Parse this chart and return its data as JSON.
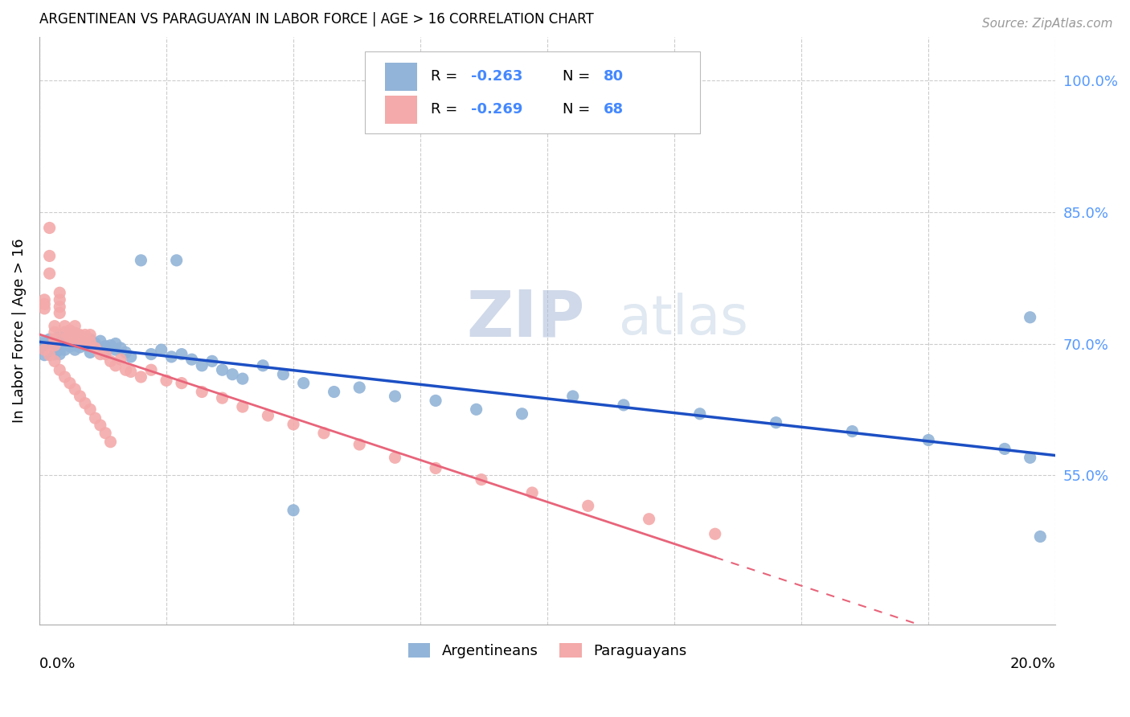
{
  "title": "ARGENTINEAN VS PARAGUAYAN IN LABOR FORCE | AGE > 16 CORRELATION CHART",
  "source": "Source: ZipAtlas.com",
  "ylabel": "In Labor Force | Age > 16",
  "right_ytick_labels": [
    "100.0%",
    "85.0%",
    "70.0%",
    "55.0%"
  ],
  "right_ytick_vals": [
    1.0,
    0.85,
    0.7,
    0.55
  ],
  "legend_blue_r": "R = -0.263",
  "legend_blue_n": "N = 80",
  "legend_pink_r": "R = -0.269",
  "legend_pink_n": "N = 68",
  "blue_color": "#92B4D8",
  "pink_color": "#F4AAAA",
  "blue_line_color": "#1C4FC4",
  "pink_line_color": "#E8647A",
  "watermark_zip": "ZIP",
  "watermark_atlas": "atlas",
  "xlim": [
    0.0,
    0.2
  ],
  "ylim": [
    0.38,
    1.05
  ],
  "grid_yticks": [
    0.55,
    0.7,
    0.85,
    1.0
  ],
  "blue_x": [
    0.001,
    0.001,
    0.001,
    0.001,
    0.001,
    0.002,
    0.002,
    0.002,
    0.002,
    0.002,
    0.003,
    0.003,
    0.003,
    0.003,
    0.004,
    0.004,
    0.004,
    0.004,
    0.004,
    0.005,
    0.005,
    0.005,
    0.005,
    0.006,
    0.006,
    0.006,
    0.007,
    0.007,
    0.007,
    0.007,
    0.008,
    0.008,
    0.008,
    0.009,
    0.009,
    0.01,
    0.01,
    0.01,
    0.011,
    0.012,
    0.013,
    0.013,
    0.014,
    0.015,
    0.015,
    0.016,
    0.017,
    0.018,
    0.02,
    0.022,
    0.024,
    0.026,
    0.027,
    0.028,
    0.03,
    0.032,
    0.034,
    0.036,
    0.038,
    0.04,
    0.044,
    0.048,
    0.052,
    0.058,
    0.063,
    0.07,
    0.078,
    0.086,
    0.095,
    0.105,
    0.115,
    0.13,
    0.145,
    0.16,
    0.175,
    0.19,
    0.195,
    0.197,
    0.05,
    0.195
  ],
  "blue_y": [
    0.695,
    0.7,
    0.693,
    0.687,
    0.703,
    0.698,
    0.705,
    0.693,
    0.688,
    0.698,
    0.703,
    0.697,
    0.692,
    0.688,
    0.71,
    0.703,
    0.697,
    0.693,
    0.688,
    0.712,
    0.705,
    0.698,
    0.693,
    0.71,
    0.703,
    0.697,
    0.712,
    0.705,
    0.698,
    0.693,
    0.708,
    0.702,
    0.696,
    0.705,
    0.698,
    0.705,
    0.698,
    0.69,
    0.7,
    0.703,
    0.697,
    0.69,
    0.698,
    0.7,
    0.693,
    0.695,
    0.69,
    0.685,
    0.795,
    0.688,
    0.693,
    0.685,
    0.795,
    0.688,
    0.682,
    0.675,
    0.68,
    0.67,
    0.665,
    0.66,
    0.675,
    0.665,
    0.655,
    0.645,
    0.65,
    0.64,
    0.635,
    0.625,
    0.62,
    0.64,
    0.63,
    0.62,
    0.61,
    0.6,
    0.59,
    0.58,
    0.57,
    0.48,
    0.51,
    0.73
  ],
  "pink_x": [
    0.001,
    0.001,
    0.001,
    0.002,
    0.002,
    0.002,
    0.003,
    0.003,
    0.003,
    0.003,
    0.004,
    0.004,
    0.004,
    0.004,
    0.005,
    0.005,
    0.005,
    0.006,
    0.006,
    0.007,
    0.007,
    0.007,
    0.008,
    0.008,
    0.009,
    0.009,
    0.01,
    0.01,
    0.011,
    0.012,
    0.013,
    0.014,
    0.015,
    0.016,
    0.017,
    0.018,
    0.02,
    0.022,
    0.025,
    0.028,
    0.032,
    0.036,
    0.04,
    0.045,
    0.05,
    0.056,
    0.063,
    0.07,
    0.078,
    0.087,
    0.097,
    0.108,
    0.12,
    0.133,
    0.001,
    0.002,
    0.003,
    0.004,
    0.005,
    0.006,
    0.007,
    0.008,
    0.009,
    0.01,
    0.011,
    0.012,
    0.013,
    0.014
  ],
  "pink_y": [
    0.75,
    0.745,
    0.74,
    0.832,
    0.8,
    0.78,
    0.72,
    0.713,
    0.705,
    0.698,
    0.758,
    0.75,
    0.742,
    0.735,
    0.72,
    0.713,
    0.705,
    0.715,
    0.707,
    0.72,
    0.712,
    0.705,
    0.71,
    0.702,
    0.71,
    0.702,
    0.71,
    0.702,
    0.695,
    0.688,
    0.688,
    0.68,
    0.675,
    0.682,
    0.67,
    0.668,
    0.662,
    0.67,
    0.658,
    0.655,
    0.645,
    0.638,
    0.628,
    0.618,
    0.608,
    0.598,
    0.585,
    0.57,
    0.558,
    0.545,
    0.53,
    0.515,
    0.5,
    0.483,
    0.693,
    0.687,
    0.68,
    0.67,
    0.662,
    0.655,
    0.648,
    0.64,
    0.632,
    0.625,
    0.615,
    0.607,
    0.598,
    0.588
  ]
}
